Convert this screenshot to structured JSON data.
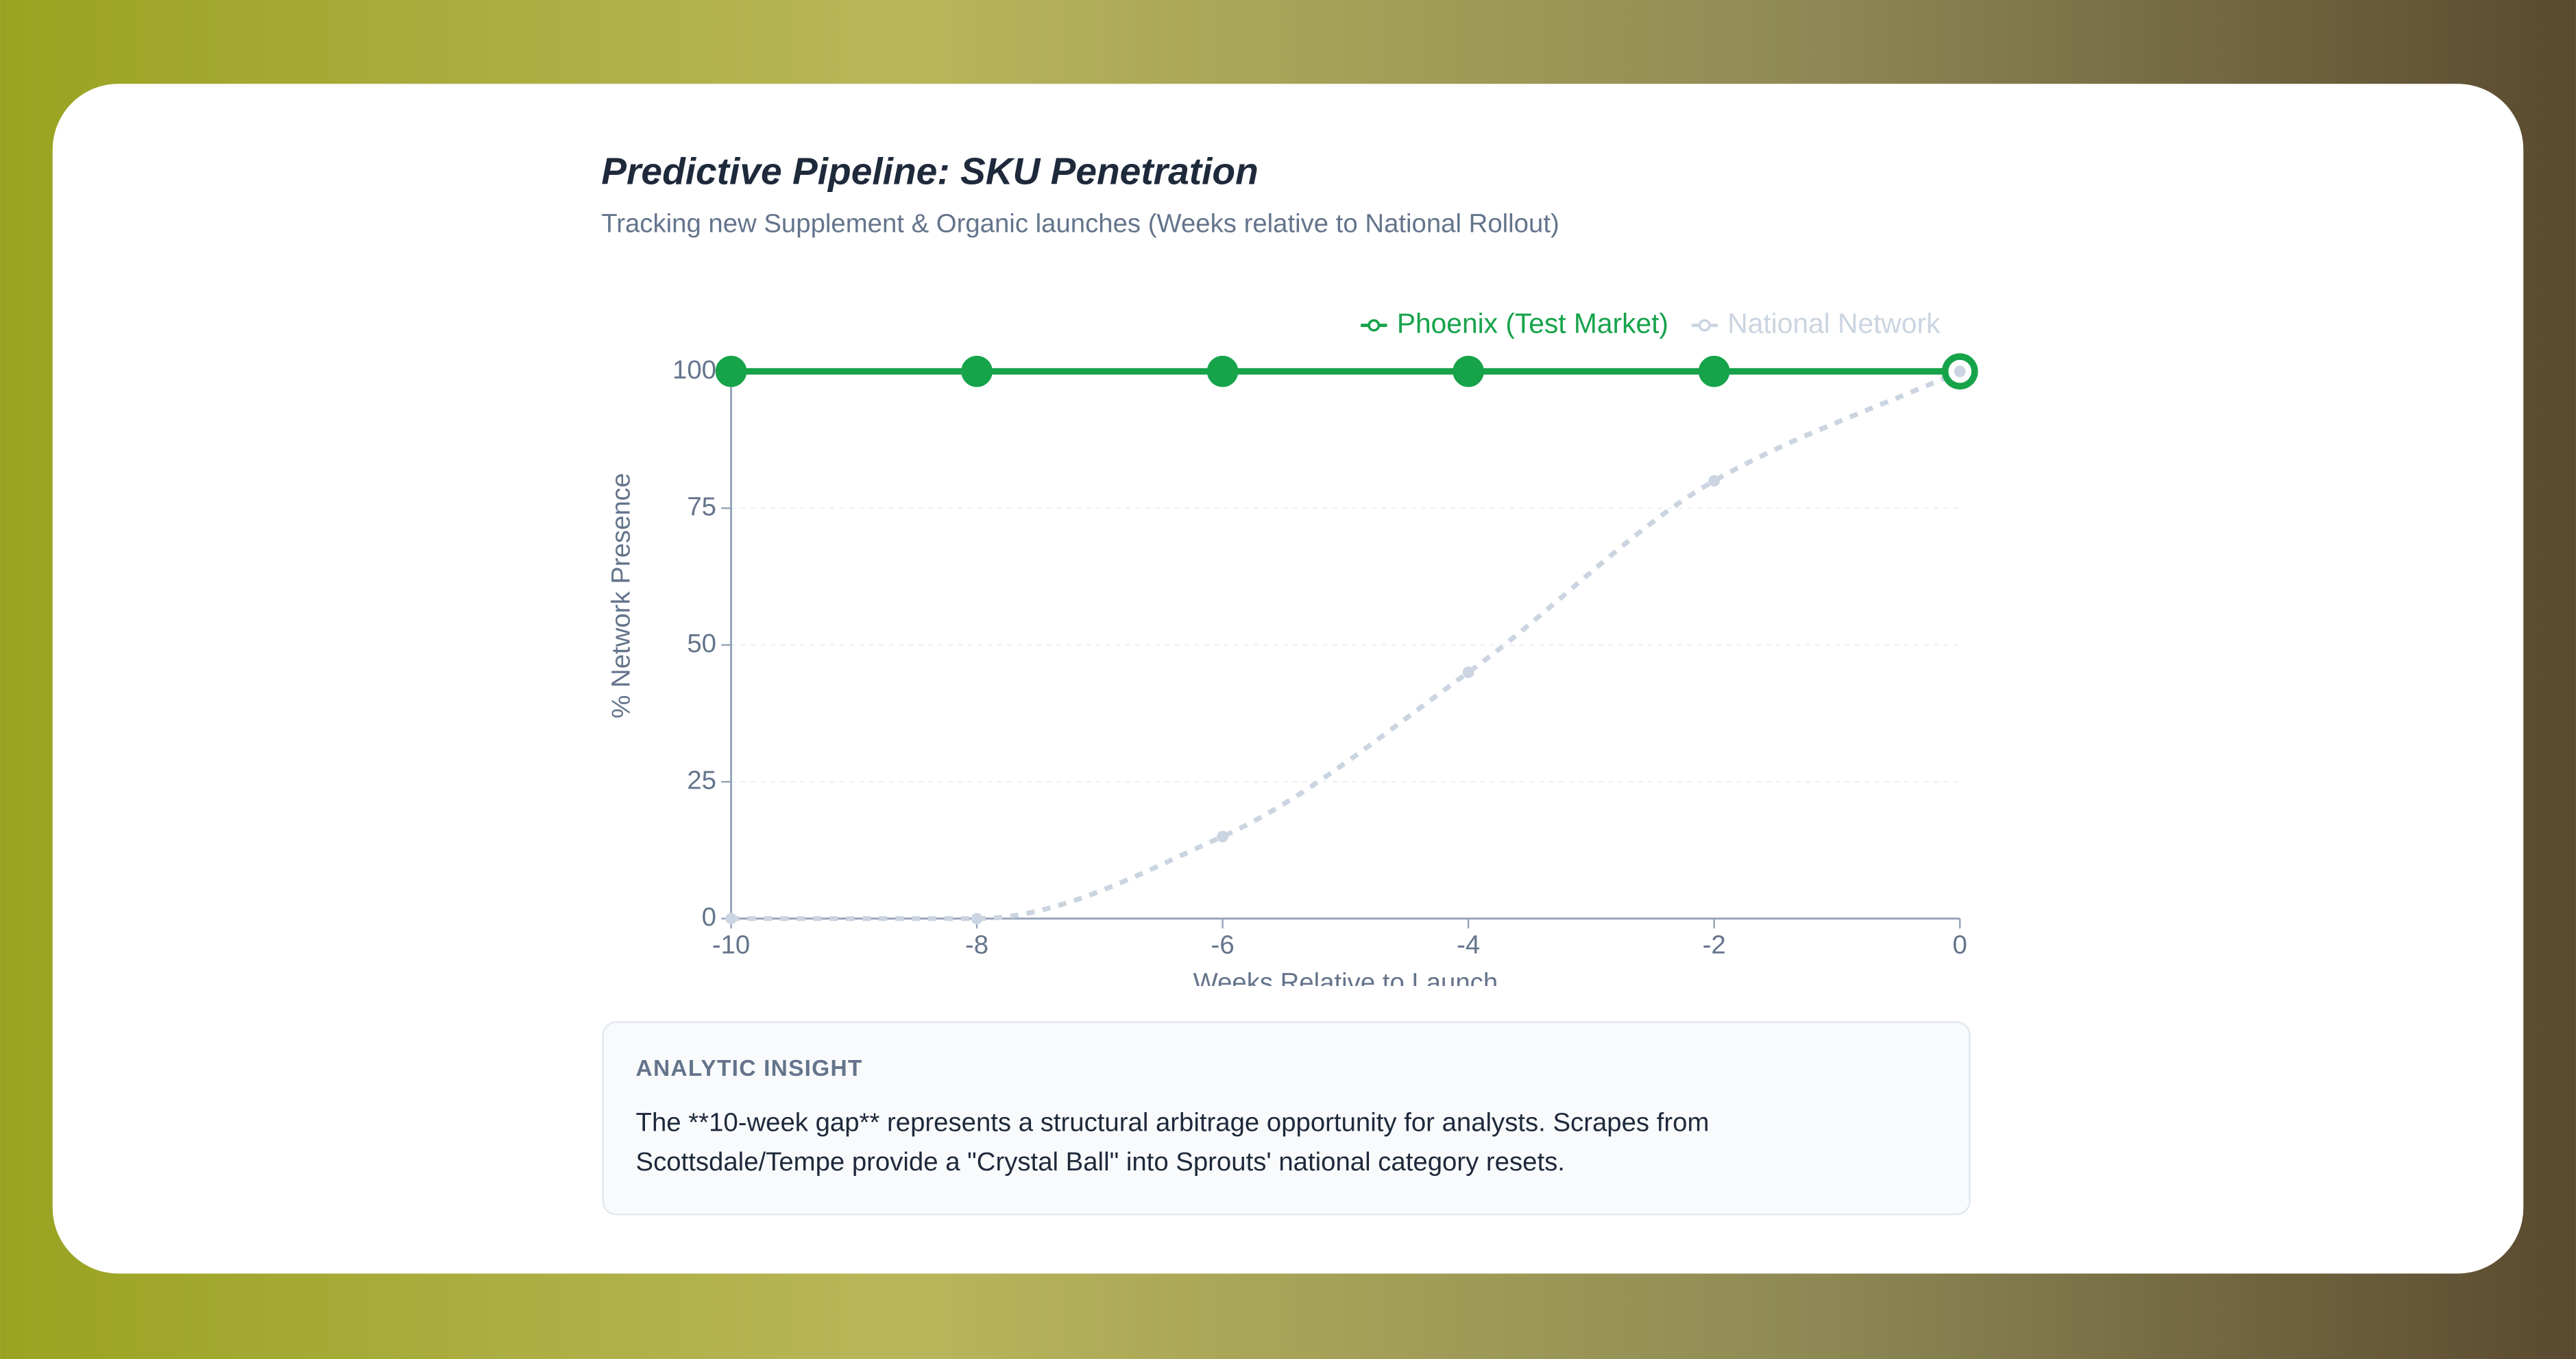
{
  "chart_data": {
    "type": "line",
    "title": "Predictive Pipeline: SKU Penetration",
    "subtitle": "Tracking new Supplement & Organic launches (Weeks relative to National Rollout)",
    "x_label": "Weeks Relative to Launch",
    "y_label": "% Network Presence",
    "x": [
      -10,
      -8,
      -6,
      -4,
      -2,
      0
    ],
    "series": [
      {
        "name": "Phoenix (Test Market)",
        "color": "#16a34a",
        "values": [
          100,
          100,
          100,
          100,
          100,
          100
        ]
      },
      {
        "name": "National Network",
        "color": "#cbd5e1",
        "values": [
          0,
          0,
          15,
          45,
          80,
          100
        ]
      }
    ],
    "xlim": [
      -10,
      0
    ],
    "xticks": [
      -10,
      -8,
      -6,
      -4,
      -2,
      0
    ],
    "ylim": [
      0,
      100
    ],
    "yticks": [
      0,
      25,
      50,
      75,
      100
    ],
    "grid": true,
    "legend": "top-right"
  },
  "insight": {
    "heading": "ANALYTIC INSIGHT",
    "lines": [
      "The **10-week gap** represents a structural arbitrage opportunity for analysts. Scrapes from",
      "Scottsdale/Tempe provide a \"Crystal Ball\" into Sprouts' national category resets."
    ]
  }
}
